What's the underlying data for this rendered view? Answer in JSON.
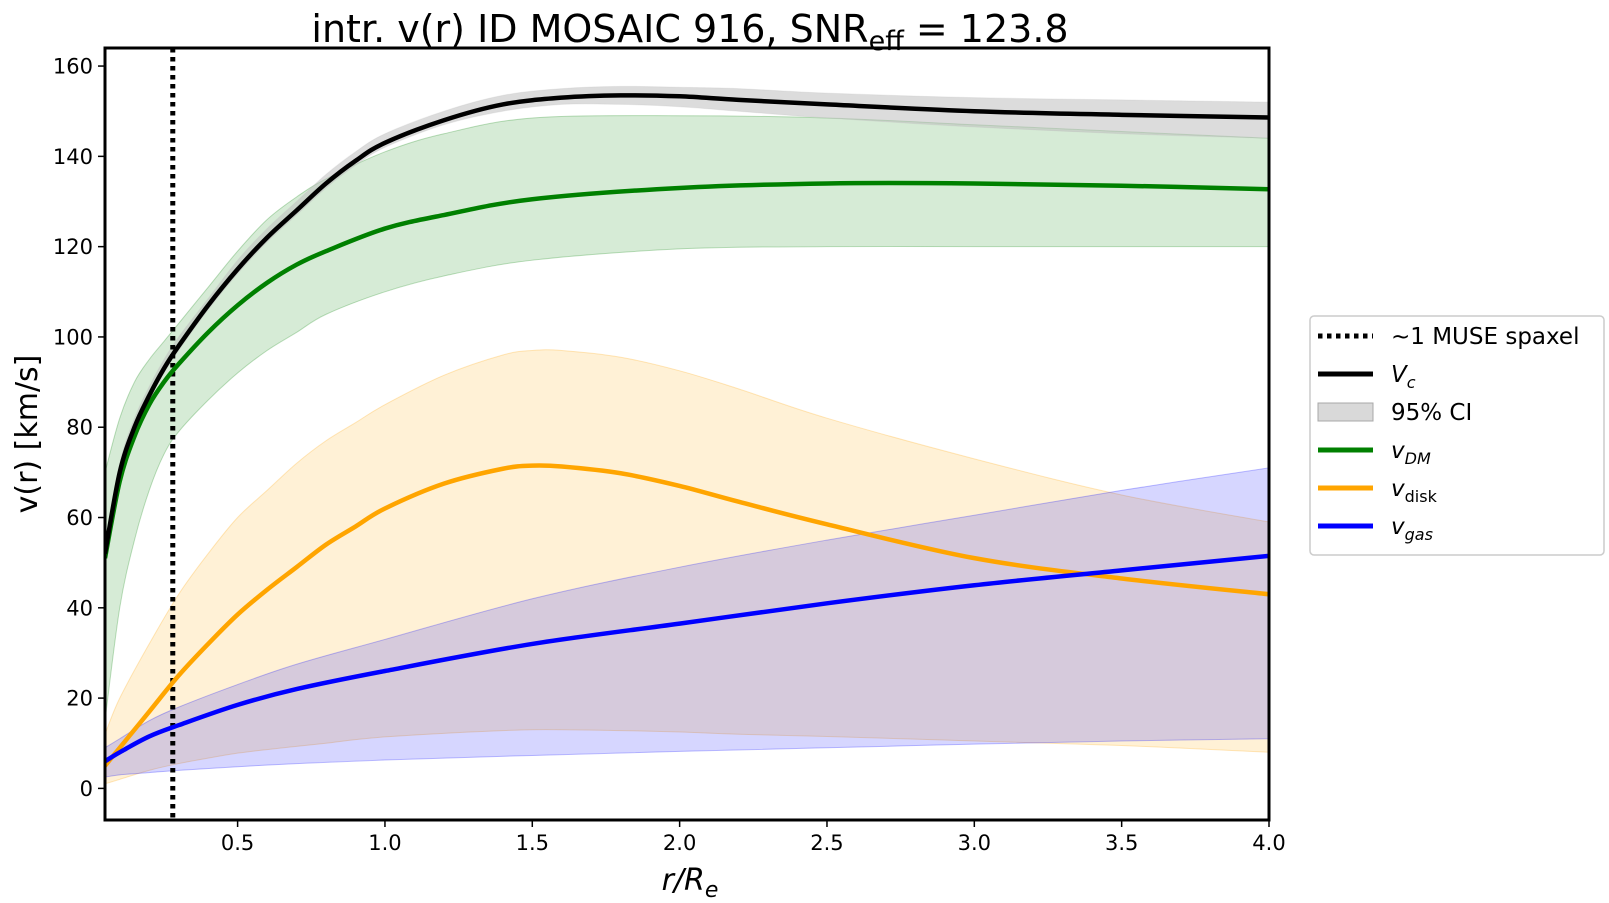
{
  "chart_data": {
    "type": "line",
    "title": {
      "prefix": "intr. v(r) ID MOSAIC 916, SNR",
      "subscript": "eff",
      "suffix": " = 123.8"
    },
    "xlabel": {
      "main": "r/R",
      "sub": "e"
    },
    "ylabel": "v(r) [km/s]",
    "xlim": [
      0.05,
      4.0
    ],
    "ylim": [
      -7,
      164
    ],
    "xticks": [
      0.5,
      1.0,
      1.5,
      2.0,
      2.5,
      3.0,
      3.5,
      4.0
    ],
    "xtick_labels": [
      "0.5",
      "1.0",
      "1.5",
      "2.0",
      "2.5",
      "3.0",
      "3.5",
      "4.0"
    ],
    "yticks": [
      0,
      20,
      40,
      60,
      80,
      100,
      120,
      140,
      160
    ],
    "ytick_labels": [
      "0",
      "20",
      "40",
      "60",
      "80",
      "100",
      "120",
      "140",
      "160"
    ],
    "vline": {
      "x": 0.28,
      "label": "~1 MUSE spaxel"
    },
    "ci_label": "95% CI",
    "series": [
      {
        "name": "V",
        "sub": "c",
        "color": "#000000",
        "band_color": "#bfbfbf",
        "x": [
          0.05,
          0.1,
          0.15,
          0.2,
          0.25,
          0.3,
          0.4,
          0.5,
          0.6,
          0.7,
          0.8,
          0.9,
          1.0,
          1.2,
          1.4,
          1.6,
          1.8,
          2.0,
          2.2,
          2.5,
          3.0,
          3.5,
          4.0
        ],
        "y": [
          52,
          70,
          80,
          87,
          93,
          98,
          107,
          115,
          122,
          128,
          134,
          139,
          143,
          148,
          151.5,
          153,
          153.5,
          153.3,
          152.5,
          151.5,
          150,
          149.2,
          148.6
        ],
        "lower": [
          50,
          68,
          78,
          86,
          92,
          97,
          106,
          114,
          121,
          127,
          133,
          138,
          142,
          147,
          150,
          151.5,
          151.5,
          151,
          150,
          148.5,
          146.5,
          145,
          144
        ],
        "upper": [
          54,
          72,
          82,
          89,
          95,
          100,
          108.5,
          117,
          124,
          130,
          136,
          141,
          145,
          150,
          153.5,
          155,
          155.5,
          155.3,
          155,
          154,
          153,
          152.5,
          152
        ]
      },
      {
        "name": "v",
        "sub": "DM",
        "color": "#008000",
        "band_color": "#008000",
        "x": [
          0.05,
          0.1,
          0.15,
          0.2,
          0.25,
          0.3,
          0.4,
          0.5,
          0.6,
          0.7,
          0.8,
          1.0,
          1.2,
          1.5,
          2.0,
          2.5,
          3.0,
          3.5,
          4.0
        ],
        "y": [
          51,
          68,
          78,
          85,
          90,
          94,
          101,
          107,
          112,
          116,
          119,
          124,
          127,
          130.5,
          133,
          134,
          134,
          133.5,
          132.7
        ],
        "lower": [
          15,
          40,
          55,
          66,
          74,
          79,
          86,
          92,
          97,
          101,
          105,
          110,
          113.5,
          117,
          119.5,
          120,
          120,
          120,
          120
        ],
        "upper": [
          70,
          82,
          90,
          95,
          99,
          103,
          111,
          119,
          126,
          131,
          135,
          141,
          145,
          148.5,
          149,
          148.5,
          147,
          145.5,
          144
        ]
      },
      {
        "name": "v",
        "sub": "disk",
        "color": "#ffa500",
        "band_color": "#ffa500",
        "x": [
          0.05,
          0.1,
          0.2,
          0.3,
          0.4,
          0.5,
          0.6,
          0.7,
          0.8,
          0.9,
          1.0,
          1.2,
          1.4,
          1.5,
          1.6,
          1.8,
          2.0,
          2.2,
          2.5,
          3.0,
          3.5,
          4.0
        ],
        "y": [
          5,
          9,
          17,
          25,
          32,
          38.5,
          44,
          49,
          54,
          58,
          62,
          67.5,
          70.8,
          71.5,
          71.3,
          69.8,
          67,
          63.5,
          58.5,
          51,
          46.5,
          43
        ],
        "lower": [
          1,
          2,
          4,
          5.5,
          6.7,
          7.8,
          8.6,
          9.3,
          10,
          10.8,
          11.4,
          12.2,
          12.8,
          13,
          13,
          12.8,
          12.5,
          12,
          11.5,
          10.5,
          9.5,
          8
        ],
        "upper": [
          12,
          20,
          32,
          43,
          52,
          60,
          66,
          72,
          77,
          81,
          85,
          91.5,
          96,
          97,
          97,
          95.5,
          92.5,
          88.5,
          82,
          73,
          65,
          59
        ]
      },
      {
        "name": "v",
        "sub": "gas",
        "color": "#0000ff",
        "band_color": "#0000ff",
        "x": [
          0.05,
          0.1,
          0.2,
          0.3,
          0.5,
          0.7,
          1.0,
          1.5,
          2.0,
          2.5,
          3.0,
          3.5,
          4.0
        ],
        "y": [
          6,
          8,
          11.5,
          14,
          18.5,
          22,
          26,
          32,
          36.5,
          41,
          45,
          48.3,
          51.5
        ],
        "lower": [
          2.5,
          3,
          3.5,
          4,
          4.8,
          5.5,
          6.3,
          7.3,
          8.2,
          9,
          9.8,
          10.5,
          11
        ],
        "upper": [
          9,
          11,
          15,
          18,
          23,
          27.5,
          33,
          42,
          49,
          55,
          60.5,
          66,
          71
        ]
      }
    ]
  }
}
